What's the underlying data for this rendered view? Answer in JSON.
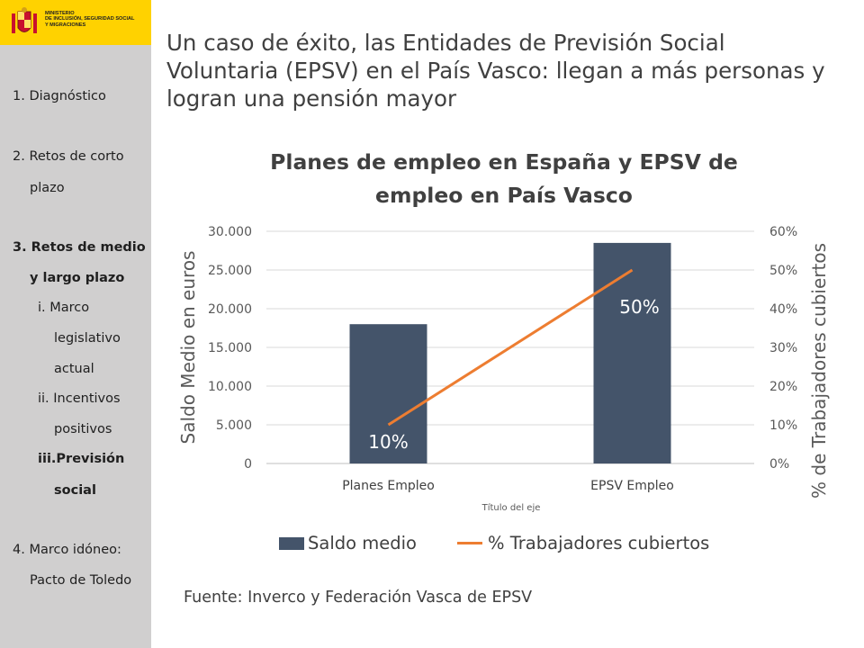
{
  "logo": {
    "lines": [
      "MINISTERIO",
      "DE INCLUSIÓN, SEGURIDAD SOCIAL",
      "Y MIGRACIONES"
    ]
  },
  "sidebar": {
    "items": [
      {
        "label": "1. Diagnóstico"
      },
      {
        "label": "2. Retos de corto"
      },
      {
        "label": "plazo"
      },
      {
        "label": "3. Retos de medio"
      },
      {
        "label": "y largo plazo"
      },
      {
        "label": "i.  Marco"
      },
      {
        "label": "legislativo"
      },
      {
        "label": "actual"
      },
      {
        "label": "ii. Incentivos"
      },
      {
        "label": "positivos"
      },
      {
        "label": "iii.Previsión"
      },
      {
        "label": "social"
      },
      {
        "label": "4. Marco idóneo:"
      },
      {
        "label": "Pacto de Toledo"
      }
    ]
  },
  "slide": {
    "title_lines": [
      "Un caso de éxito, las Entidades de Previsión Social",
      "Voluntaria (EPSV) en el País Vasco: llegan a más personas y",
      "logran una pensión mayor"
    ],
    "source": "Fuente: Inverco y Federación Vasca de EPSV"
  },
  "chart_data": {
    "type": "bar",
    "title_lines": [
      "Planes de empleo en España y EPSV de",
      "empleo en País Vasco"
    ],
    "categories": [
      "Planes Empleo",
      "EPSV Empleo"
    ],
    "series": [
      {
        "name": "Saldo medio",
        "type": "bar",
        "axis": "left",
        "values": [
          18000,
          28500
        ],
        "color": "#44546a"
      },
      {
        "name": "% Trabajadores cubiertos",
        "type": "line",
        "axis": "right",
        "values": [
          10,
          50
        ],
        "color": "#ed7d31"
      }
    ],
    "data_labels": [
      "10%",
      "50%"
    ],
    "xlabel": "Título del eje",
    "ylabel": "Saldo Medio en euros",
    "y2label": "% de Trabajadores cubiertos",
    "ylim": [
      0,
      30000
    ],
    "y2lim": [
      0,
      60
    ],
    "yticks": [
      "0",
      "5.000",
      "10.000",
      "15.000",
      "20.000",
      "25.000",
      "30.000"
    ],
    "y2ticks": [
      "0%",
      "10%",
      "20%",
      "30%",
      "40%",
      "50%",
      "60%"
    ],
    "grid": true,
    "legend_position": "bottom"
  }
}
